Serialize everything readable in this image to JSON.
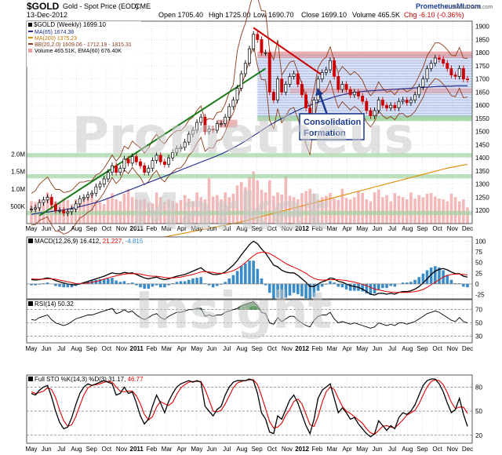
{
  "header": {
    "ticker": "$GOLD",
    "name": "Gold - Spot Price (EOD)",
    "exchange": "CME",
    "date": "13-Dec-2012",
    "brand": "PrometheusMI.com",
    "stockcharts": "© StockCharts.com",
    "open": "Open 1705.40",
    "high": "High 1725.00",
    "low": "Low 1690.70",
    "close": "Close 1699.10",
    "volume": "Volume 465.5K",
    "chg": "Chg -6.10 (-0.36%)"
  },
  "legend": {
    "price": "$GOLD (Weekly) 1699.10",
    "ma65": "MA(65) 1674.38",
    "ma200": "MA(200) 1375.23",
    "bb": "BB(20,2.0) 1609.06 - 1712.19 - 1815.31",
    "volume": "Volume 465.51K, EMA(60) 676.40K"
  },
  "annotation": {
    "line1": "Consolidation",
    "line2": "Formation"
  },
  "watermark": [
    "Prometheus",
    "Market",
    "Insight"
  ],
  "colors": {
    "price_up": "#000000",
    "price_down": "#cc0000",
    "ma65": "#1e2a8c",
    "ma200": "#e08a00",
    "bb": "#8b3a1a",
    "zone_red": "#e8a0a0",
    "zone_blue": "#b8c8ee",
    "zone_green": "#9ed39e",
    "trend_green": "#1a7a1a",
    "trend_red": "#cc0000",
    "volume": "#f2a0a0",
    "macd_hist": "#3a8cc8",
    "rsi_fill": "#2e7d32"
  },
  "x_axis": {
    "labels": [
      "May",
      "Jun",
      "Jul",
      "Aug",
      "Sep",
      "Oct",
      "Nov",
      "2011",
      "Feb",
      "Mar",
      "Apr",
      "May",
      "Jun",
      "Jul",
      "Aug",
      "Sep",
      "Oct",
      "Nov",
      "2012",
      "Feb",
      "Mar",
      "Apr",
      "May",
      "Jun",
      "Jul",
      "Aug",
      "Sep",
      "Oct",
      "Nov",
      "Dec"
    ]
  },
  "chart_data": [
    {
      "type": "candlestick",
      "title": "$GOLD Gold - Spot Price (EOD) CME",
      "ylim": [
        1150,
        1920
      ],
      "yticks": [
        1200,
        1250,
        1300,
        1350,
        1400,
        1450,
        1500,
        1550,
        1600,
        1650,
        1700,
        1750,
        1800,
        1850,
        1900
      ],
      "volume_ticks": [
        "500K",
        "1.0M",
        "1.5M",
        "2.0M"
      ],
      "zones": {
        "consolidation_low": 1550,
        "consolidation_high": 1800,
        "horizontal_supports": [
          1550,
          1410,
          1330,
          1190
        ]
      },
      "trendline_up": [
        [
          1180,
          0
        ],
        [
          1655,
          1
        ]
      ],
      "trendline_down": [
        [
          1900,
          0
        ],
        [
          1720,
          1
        ]
      ],
      "close": [
        1205,
        1210,
        1230,
        1240,
        1250,
        1222,
        1200,
        1200,
        1190,
        1195,
        1205,
        1225,
        1245,
        1250,
        1260,
        1265,
        1290,
        1300,
        1320,
        1345,
        1370,
        1345,
        1360,
        1395,
        1380,
        1405,
        1385,
        1370,
        1345,
        1360,
        1390,
        1410,
        1385,
        1375,
        1400,
        1420,
        1435,
        1440,
        1460,
        1490,
        1505,
        1535,
        1555,
        1500,
        1510,
        1505,
        1530,
        1530,
        1555,
        1595,
        1620,
        1665,
        1720,
        1760,
        1815,
        1870,
        1850,
        1800,
        1800,
        1650,
        1620,
        1700,
        1650,
        1680,
        1710,
        1720,
        1680,
        1640,
        1590,
        1550,
        1620,
        1700,
        1725,
        1735,
        1770,
        1710,
        1660,
        1680,
        1660,
        1640,
        1650,
        1635,
        1615,
        1580,
        1560,
        1580,
        1620,
        1600,
        1590,
        1600,
        1590,
        1615,
        1620,
        1610,
        1620,
        1640,
        1670,
        1700,
        1740,
        1760,
        1780,
        1775,
        1760,
        1740,
        1715,
        1710,
        1740,
        1700,
        1699
      ],
      "ma65": [
        1185,
        1188,
        1190,
        1192,
        1194,
        1196,
        1198,
        1200,
        1202,
        1205,
        1208,
        1211,
        1214,
        1218,
        1222,
        1226,
        1230,
        1235,
        1240,
        1246,
        1252,
        1258,
        1264,
        1270,
        1276,
        1282,
        1288,
        1294,
        1300,
        1306,
        1312,
        1318,
        1324,
        1330,
        1336,
        1342,
        1348,
        1354,
        1360,
        1366,
        1372,
        1378,
        1384,
        1390,
        1396,
        1402,
        1408,
        1415,
        1422,
        1430,
        1438,
        1446,
        1455,
        1464,
        1474,
        1484,
        1494,
        1504,
        1514,
        1524,
        1533,
        1542,
        1550,
        1558,
        1566,
        1574,
        1581,
        1588,
        1594,
        1600,
        1606,
        1612,
        1617,
        1622,
        1627,
        1632,
        1636,
        1640,
        1643,
        1646,
        1649,
        1651,
        1653,
        1654,
        1655,
        1656,
        1657,
        1658,
        1659,
        1660,
        1661,
        1662,
        1663,
        1664,
        1665,
        1666,
        1667,
        1668,
        1669,
        1670,
        1671,
        1672,
        1672,
        1673,
        1673,
        1674,
        1674,
        1674,
        1674
      ],
      "ma200": [
        1000,
        1003,
        1006,
        1009,
        1012,
        1015,
        1018,
        1021,
        1024,
        1027,
        1030,
        1033,
        1036,
        1039,
        1042,
        1045,
        1048,
        1051,
        1054,
        1057,
        1060,
        1063,
        1066,
        1069,
        1072,
        1075,
        1078,
        1081,
        1084,
        1087,
        1090,
        1093,
        1096,
        1099,
        1102,
        1105,
        1108,
        1111,
        1114,
        1117,
        1120,
        1123,
        1126,
        1129,
        1132,
        1135,
        1138,
        1141,
        1144,
        1147,
        1150,
        1153,
        1157,
        1161,
        1165,
        1169,
        1173,
        1177,
        1181,
        1185,
        1189,
        1193,
        1197,
        1201,
        1205,
        1209,
        1213,
        1217,
        1221,
        1225,
        1229,
        1233,
        1237,
        1241,
        1245,
        1249,
        1253,
        1257,
        1261,
        1265,
        1269,
        1273,
        1277,
        1281,
        1285,
        1289,
        1293,
        1297,
        1301,
        1305,
        1309,
        1313,
        1317,
        1321,
        1325,
        1329,
        1333,
        1337,
        1341,
        1345,
        1349,
        1353,
        1357,
        1361,
        1364,
        1367,
        1370,
        1373,
        1375
      ],
      "volume_k": [
        650,
        620,
        700,
        580,
        900,
        750,
        640,
        600,
        720,
        680,
        560,
        700,
        620,
        760,
        800,
        900,
        680,
        620,
        560,
        740,
        880,
        700,
        640,
        860,
        1000,
        760,
        700,
        680,
        720,
        600,
        580,
        900,
        760,
        620,
        700,
        650,
        600,
        680,
        820,
        720,
        640,
        900,
        760,
        700,
        1300,
        780,
        820,
        700,
        900,
        760,
        860,
        1100,
        1200,
        1050,
        1350,
        1500,
        1250,
        980,
        900,
        1250,
        800,
        900,
        840,
        1380,
        800,
        760,
        700,
        880,
        940,
        1000,
        860,
        700,
        760,
        800,
        880,
        720,
        680,
        1000,
        740,
        700,
        760,
        940,
        880,
        700,
        640,
        900,
        980,
        760,
        820,
        640,
        880,
        800,
        760,
        700,
        900,
        720,
        820,
        760,
        860,
        880,
        780,
        720,
        700,
        640,
        860,
        760,
        640,
        700,
        465
      ]
    },
    {
      "type": "line",
      "title": "MACD(12,26,9) 16.412, 21.227, -4.815",
      "ylim": [
        -35,
        110
      ],
      "yticks": [
        -25,
        0,
        25,
        50,
        75,
        100
      ],
      "series": [
        {
          "name": "MACD",
          "values": [
            10,
            9,
            10,
            12,
            14,
            12,
            8,
            5,
            2,
            0,
            -2,
            -2,
            0,
            3,
            6,
            9,
            12,
            15,
            18,
            22,
            26,
            24,
            24,
            27,
            25,
            26,
            22,
            18,
            14,
            12,
            14,
            16,
            12,
            10,
            12,
            15,
            18,
            20,
            22,
            26,
            30,
            34,
            38,
            30,
            26,
            22,
            22,
            24,
            28,
            36,
            44,
            55,
            68,
            80,
            92,
            100,
            94,
            82,
            72,
            58,
            44,
            40,
            32,
            28,
            26,
            26,
            20,
            12,
            4,
            -6,
            -6,
            0,
            5,
            8,
            14,
            12,
            6,
            4,
            0,
            -4,
            -6,
            -8,
            -12,
            -18,
            -24,
            -26,
            -22,
            -22,
            -24,
            -22,
            -24,
            -20,
            -18,
            -18,
            -16,
            -12,
            -6,
            2,
            12,
            22,
            30,
            34,
            36,
            33,
            28,
            24,
            24,
            18,
            16
          ]
        },
        {
          "name": "Signal",
          "values": [
            12,
            11,
            11,
            11,
            12,
            12,
            11,
            9,
            7,
            5,
            3,
            1,
            1,
            1,
            2,
            4,
            6,
            8,
            11,
            14,
            17,
            19,
            21,
            23,
            24,
            24,
            24,
            23,
            21,
            19,
            18,
            18,
            17,
            15,
            14,
            14,
            15,
            16,
            18,
            20,
            22,
            25,
            28,
            29,
            28,
            27,
            25,
            25,
            25,
            28,
            31,
            36,
            42,
            50,
            58,
            66,
            72,
            74,
            74,
            71,
            66,
            60,
            54,
            48,
            43,
            39,
            35,
            30,
            25,
            18,
            13,
            10,
            9,
            9,
            10,
            10,
            10,
            9,
            8,
            6,
            4,
            2,
            -1,
            -4,
            -8,
            -12,
            -14,
            -16,
            -18,
            -19,
            -20,
            -20,
            -20,
            -20,
            -19,
            -18,
            -16,
            -13,
            -8,
            -2,
            4,
            10,
            16,
            20,
            22,
            23,
            23,
            22,
            21
          ]
        }
      ]
    },
    {
      "type": "line",
      "title": "RSI(14) 50.32",
      "ylim": [
        20,
        85
      ],
      "yticks": [
        30,
        50,
        70
      ],
      "series": [
        {
          "name": "RSI",
          "values": [
            55,
            54,
            58,
            60,
            62,
            55,
            50,
            48,
            46,
            48,
            52,
            56,
            58,
            60,
            62,
            62,
            64,
            66,
            68,
            70,
            72,
            64,
            66,
            70,
            66,
            68,
            62,
            58,
            55,
            58,
            62,
            64,
            58,
            55,
            60,
            63,
            66,
            66,
            68,
            70,
            70,
            72,
            72,
            60,
            62,
            60,
            62,
            62,
            66,
            68,
            70,
            72,
            76,
            78,
            80,
            82,
            76,
            66,
            64,
            50,
            48,
            58,
            52,
            56,
            60,
            60,
            54,
            50,
            46,
            44,
            54,
            60,
            62,
            62,
            66,
            56,
            50,
            52,
            50,
            48,
            50,
            48,
            46,
            44,
            42,
            44,
            50,
            48,
            46,
            48,
            46,
            50,
            50,
            48,
            50,
            52,
            56,
            60,
            64,
            66,
            68,
            66,
            62,
            58,
            54,
            52,
            58,
            52,
            50
          ]
        }
      ]
    },
    {
      "type": "line",
      "title": "Full STO %K(14,3) %D(3) 31.17, 46.77",
      "ylim": [
        10,
        95
      ],
      "yticks": [
        20,
        50,
        80
      ],
      "series": [
        {
          "name": "%K",
          "values": [
            72,
            70,
            76,
            80,
            82,
            68,
            50,
            36,
            28,
            30,
            42,
            58,
            72,
            80,
            84,
            82,
            84,
            86,
            88,
            86,
            84,
            70,
            72,
            80,
            72,
            74,
            60,
            44,
            34,
            40,
            56,
            70,
            60,
            48,
            62,
            72,
            80,
            84,
            86,
            88,
            86,
            88,
            86,
            56,
            50,
            44,
            52,
            56,
            70,
            80,
            86,
            88,
            88,
            88,
            90,
            88,
            72,
            48,
            40,
            24,
            22,
            44,
            40,
            52,
            64,
            70,
            60,
            46,
            32,
            22,
            40,
            66,
            76,
            80,
            84,
            66,
            48,
            54,
            48,
            40,
            42,
            34,
            28,
            22,
            18,
            22,
            38,
            32,
            26,
            32,
            28,
            42,
            48,
            46,
            50,
            58,
            70,
            82,
            88,
            90,
            90,
            84,
            74,
            60,
            48,
            52,
            66,
            46,
            31
          ]
        },
        {
          "name": "%D",
          "values": [
            74,
            72,
            73,
            75,
            79,
            77,
            67,
            51,
            38,
            31,
            33,
            43,
            57,
            70,
            79,
            82,
            83,
            84,
            86,
            87,
            86,
            80,
            75,
            74,
            75,
            75,
            69,
            59,
            46,
            39,
            43,
            55,
            62,
            59,
            57,
            61,
            71,
            79,
            83,
            86,
            87,
            87,
            87,
            77,
            64,
            50,
            49,
            51,
            59,
            69,
            79,
            85,
            87,
            88,
            89,
            89,
            83,
            69,
            53,
            37,
            29,
            30,
            35,
            45,
            52,
            62,
            65,
            59,
            46,
            33,
            31,
            43,
            61,
            74,
            80,
            77,
            66,
            56,
            50,
            47,
            43,
            39,
            35,
            28,
            23,
            21,
            26,
            31,
            32,
            30,
            29,
            34,
            39,
            45,
            48,
            51,
            59,
            70,
            80,
            87,
            89,
            88,
            83,
            73,
            61,
            53,
            55,
            55,
            47
          ]
        }
      ]
    }
  ]
}
